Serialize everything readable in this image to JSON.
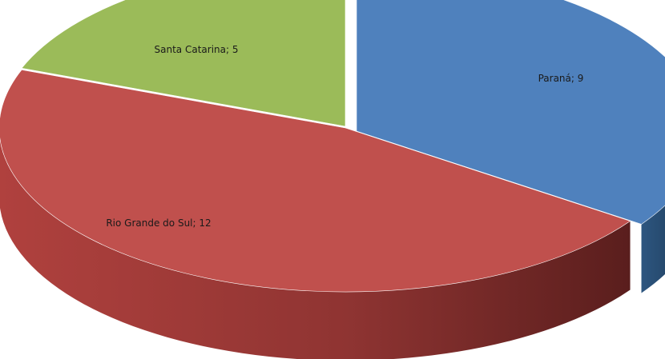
{
  "chart_data": {
    "type": "pie",
    "style": "3d-exploded-perspective",
    "title": "",
    "legend": "none",
    "slices": [
      {
        "label": "Paraná",
        "value": 9,
        "display": "Paraná; 9",
        "color": "#4f81bd",
        "side_color": "#1f3c5e"
      },
      {
        "label": "Rio Grande do Sul",
        "value": 12,
        "display": "Rio Grande do Sul; 12",
        "color": "#c0504d",
        "side_color": "#7d2a28"
      },
      {
        "label": "Santa Catarina",
        "value": 5,
        "display": "Santa Catarina; 5",
        "color": "#9bbb59",
        "side_color": "#5f7a2c"
      }
    ]
  }
}
